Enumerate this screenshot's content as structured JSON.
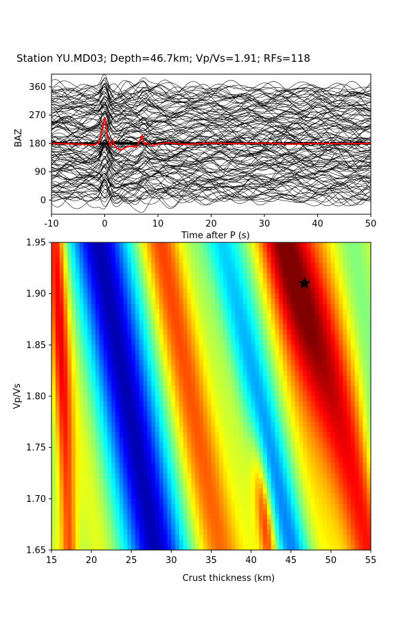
{
  "title": "Station YU.MD03; Depth=46.7km; Vp/Vs=1.91; RFs=118",
  "chart_data": [
    {
      "type": "line",
      "panel": "receiver-functions",
      "xlabel": "Time after P (s)",
      "ylabel": "BAZ",
      "xlim": [
        -10,
        50
      ],
      "ylim": [
        -45,
        400
      ],
      "xticks": [
        "-10",
        "0",
        "10",
        "20",
        "30",
        "40",
        "50"
      ],
      "yticks": [
        "0",
        "90",
        "180",
        "270",
        "360"
      ],
      "trace_count": 118,
      "trace_color": "#000000",
      "series": [
        {
          "color": "#ff0000",
          "x": [
            -10,
            -5,
            -2,
            -1,
            0,
            0.5,
            1,
            1.5,
            2,
            3,
            4,
            5,
            6,
            7,
            7.5,
            8,
            9,
            10,
            12,
            15,
            20,
            25,
            30,
            35,
            40,
            45,
            50
          ],
          "values": [
            180,
            178,
            175,
            183,
            263,
            205,
            172,
            190,
            168,
            158,
            168,
            172,
            168,
            205,
            175,
            182,
            173,
            178,
            182,
            177,
            181,
            179,
            181,
            178,
            180,
            179,
            180
          ]
        }
      ]
    },
    {
      "type": "heatmap",
      "panel": "h-kappa-stack",
      "xlabel": "Crust thickness (km)",
      "ylabel": "Vp/Vs",
      "xlim": [
        15,
        55
      ],
      "ylim": [
        1.65,
        1.95
      ],
      "xticks": [
        "15",
        "20",
        "25",
        "30",
        "35",
        "40",
        "45",
        "50",
        "55"
      ],
      "yticks": [
        "1.65",
        "1.70",
        "1.75",
        "1.80",
        "1.85",
        "1.90",
        "1.95"
      ],
      "colormap": "jet",
      "maximum": {
        "thickness_km": 46.7,
        "vp_vs": 1.91
      }
    }
  ]
}
